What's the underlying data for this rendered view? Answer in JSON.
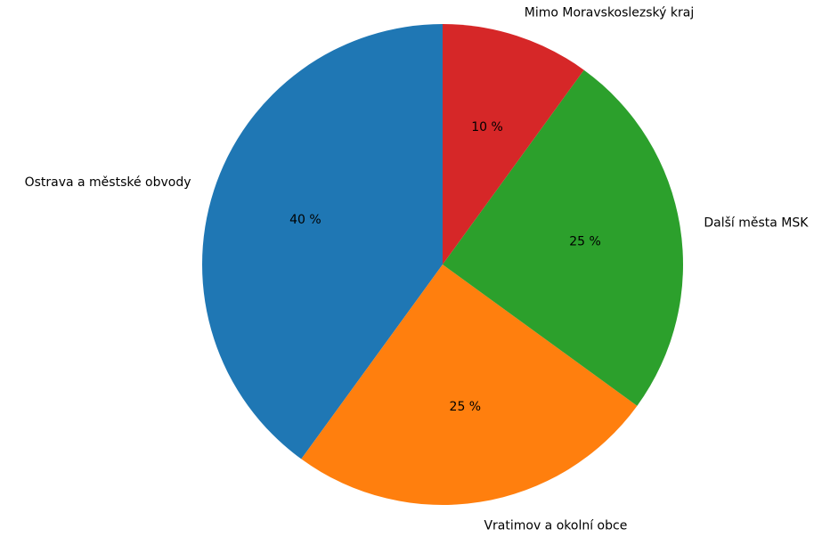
{
  "chart_data": {
    "type": "pie",
    "title": "",
    "start_angle_deg": 90,
    "direction": "counterclockwise",
    "slices": [
      {
        "label": "Ostrava a městské obvody",
        "value": 40,
        "pct_label": "40 %",
        "color": "#1f77b4"
      },
      {
        "label": "Vratimov a okolní obce",
        "value": 25,
        "pct_label": "25 %",
        "color": "#ff7f0e"
      },
      {
        "label": "Další města MSK",
        "value": 25,
        "pct_label": "25 %",
        "color": "#2ca02c"
      },
      {
        "label": "Mimo Moravskoslezský kraj",
        "value": 10,
        "pct_label": "10 %",
        "color": "#d62728"
      }
    ]
  }
}
